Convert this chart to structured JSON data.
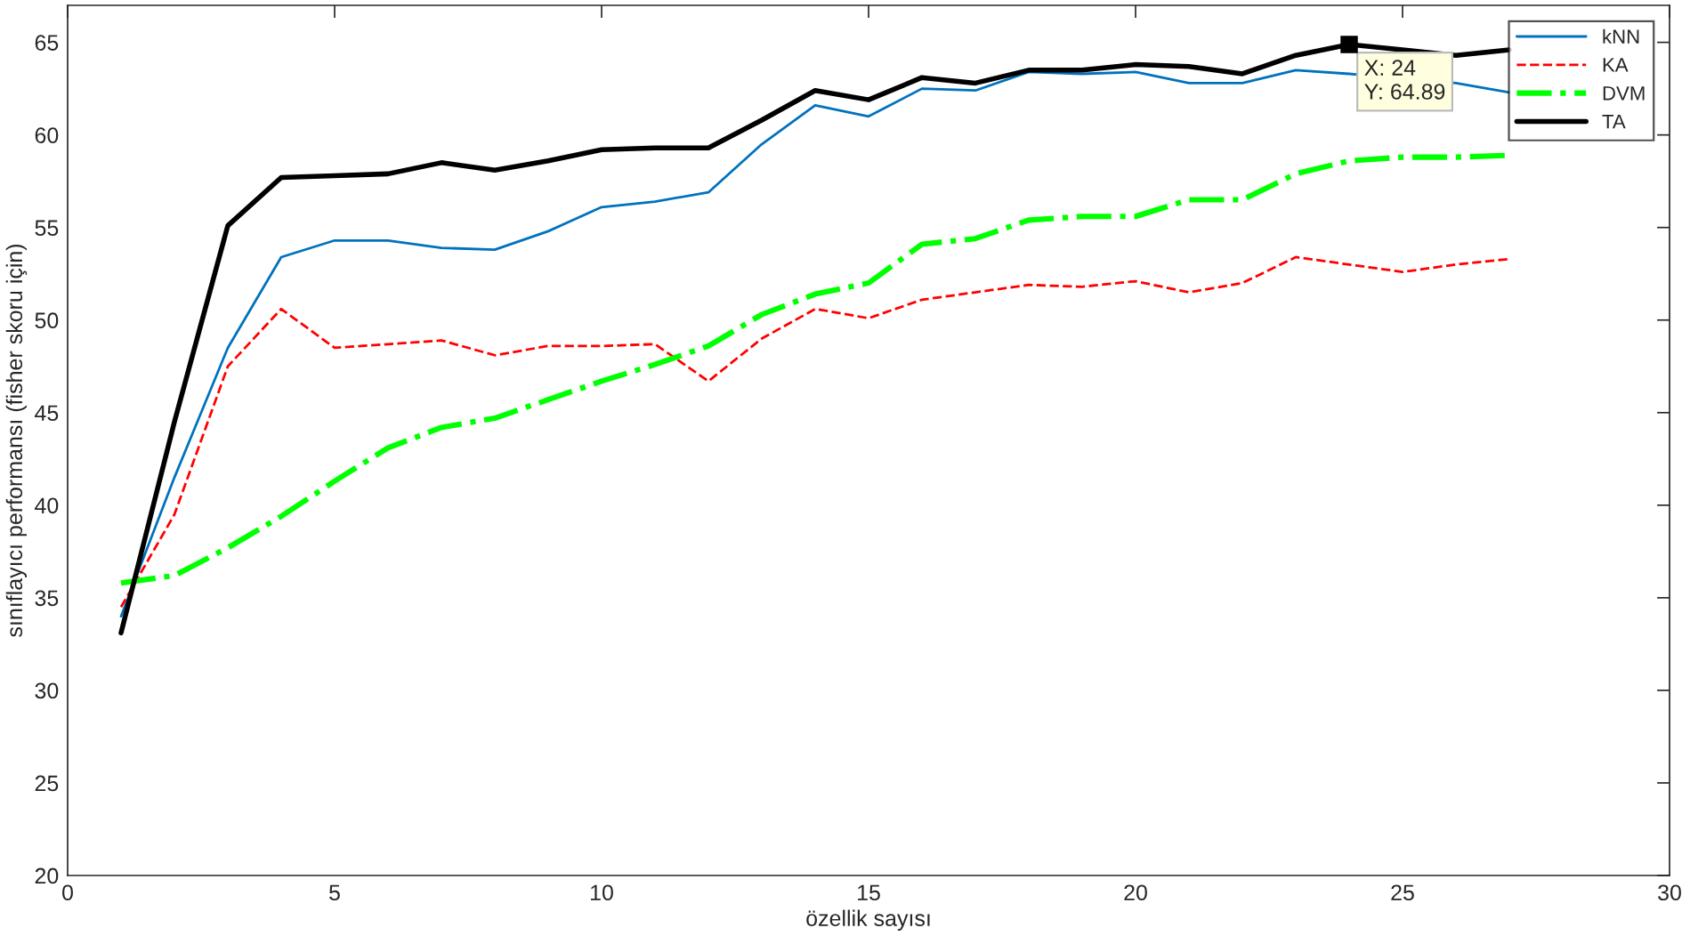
{
  "chart_data": {
    "type": "line",
    "xlabel": "özellik sayısı",
    "ylabel": "sınıflayıcı performansı (fisher skoru için)",
    "x": [
      1,
      2,
      3,
      4,
      5,
      6,
      7,
      8,
      9,
      10,
      11,
      12,
      13,
      14,
      15,
      16,
      17,
      18,
      19,
      20,
      21,
      22,
      23,
      24,
      25,
      26,
      27
    ],
    "series": [
      {
        "name": "kNN",
        "color": "#0072bd",
        "line_style": "solid",
        "values": [
          34.0,
          41.5,
          48.5,
          53.4,
          54.3,
          54.3,
          53.9,
          53.8,
          54.8,
          56.1,
          56.4,
          56.9,
          59.5,
          61.6,
          61.0,
          62.5,
          62.4,
          63.4,
          63.3,
          63.4,
          62.8,
          62.8,
          63.5,
          63.3,
          null,
          62.8,
          62.3
        ]
      },
      {
        "name": "KA",
        "color": "#ff0000",
        "line_style": "dashed",
        "values": [
          34.5,
          39.5,
          47.5,
          50.6,
          48.5,
          48.7,
          48.9,
          48.1,
          48.6,
          48.6,
          48.7,
          46.7,
          49.0,
          50.6,
          50.1,
          51.1,
          51.5,
          51.9,
          51.8,
          52.1,
          51.5,
          52.0,
          53.4,
          53.0,
          52.6,
          53.0,
          53.3
        ]
      },
      {
        "name": "DVM",
        "color": "#00ff00",
        "line_style": "dashdot",
        "values": [
          35.8,
          36.2,
          37.7,
          39.4,
          41.3,
          43.1,
          44.2,
          44.7,
          45.7,
          46.7,
          47.6,
          48.6,
          50.3,
          51.4,
          52.0,
          54.1,
          54.4,
          55.4,
          55.6,
          55.6,
          56.5,
          56.5,
          57.9,
          58.6,
          58.8,
          58.8,
          58.9
        ]
      },
      {
        "name": "TA",
        "color": "#000000",
        "line_style": "solid",
        "values": [
          33.1,
          44.5,
          55.1,
          57.7,
          57.8,
          57.9,
          58.5,
          58.1,
          58.6,
          59.2,
          59.3,
          59.3,
          60.8,
          62.4,
          61.9,
          63.1,
          62.8,
          63.5,
          63.5,
          63.8,
          63.7,
          63.3,
          64.3,
          64.89,
          64.6,
          64.3,
          64.6
        ]
      }
    ],
    "xlim": [
      0,
      30
    ],
    "xticks": [
      0,
      5,
      10,
      15,
      20,
      25,
      30
    ],
    "ylim": [
      20,
      67
    ],
    "yticks": [
      20,
      25,
      30,
      35,
      40,
      45,
      50,
      55,
      60,
      65
    ],
    "grid": false,
    "legend": "top right",
    "marker": "none",
    "annotations": [
      {
        "text": "X: 24\nY: 64.89",
        "x": 24,
        "y": 64.89
      }
    ]
  }
}
